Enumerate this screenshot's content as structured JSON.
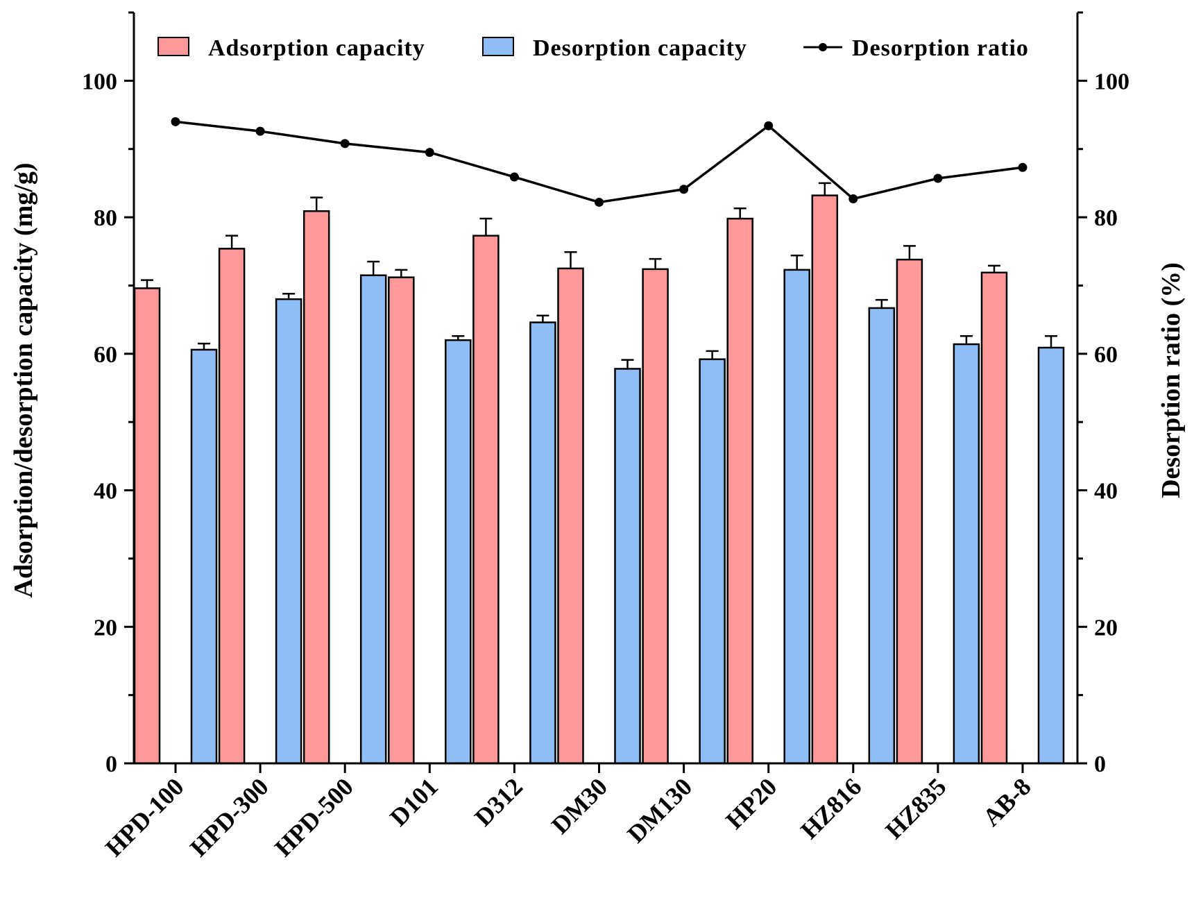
{
  "chart_data": {
    "type": "bar",
    "title": "",
    "xlabel": "",
    "ylabel": "Adsorption/desorption capacity (mg/g)",
    "y2label": "Desorption ratio (%)",
    "ylim": [
      0,
      110
    ],
    "y2lim": [
      0,
      110
    ],
    "yticks": [
      0,
      20,
      40,
      60,
      80,
      100
    ],
    "y2ticks": [
      0,
      20,
      40,
      60,
      80,
      100
    ],
    "legend_position": "top",
    "categories": [
      "HPD-100",
      "HPD-300",
      "HPD-500",
      "D101",
      "D312",
      "DM30",
      "DM130",
      "HP20",
      "HZ816",
      "HZ835",
      "AB-8"
    ],
    "series": [
      {
        "name": "Adsorption capacity",
        "kind": "bar",
        "axis": "left",
        "color": "#FF9999",
        "values": [
          69.6,
          75.4,
          80.9,
          71.2,
          77.3,
          72.5,
          72.4,
          79.8,
          83.2,
          73.8,
          71.9
        ],
        "errors": [
          1.2,
          1.9,
          2.0,
          1.1,
          2.5,
          2.4,
          1.5,
          1.5,
          1.8,
          2.0,
          1.0
        ]
      },
      {
        "name": "Desorption capacity",
        "kind": "bar",
        "axis": "left",
        "color": "#8FBEF7",
        "values": [
          60.6,
          68.0,
          71.5,
          62.0,
          64.6,
          57.8,
          59.2,
          72.3,
          66.7,
          61.4,
          60.9
        ],
        "errors": [
          0.9,
          0.8,
          2.0,
          0.6,
          1.0,
          1.3,
          1.2,
          2.1,
          1.2,
          1.2,
          1.7
        ]
      },
      {
        "name": "Desorption ratio",
        "kind": "line",
        "axis": "right",
        "color": "#000000",
        "values": [
          94.0,
          92.6,
          90.8,
          89.5,
          85.9,
          82.2,
          84.1,
          93.4,
          82.7,
          85.7,
          87.3
        ]
      }
    ]
  }
}
